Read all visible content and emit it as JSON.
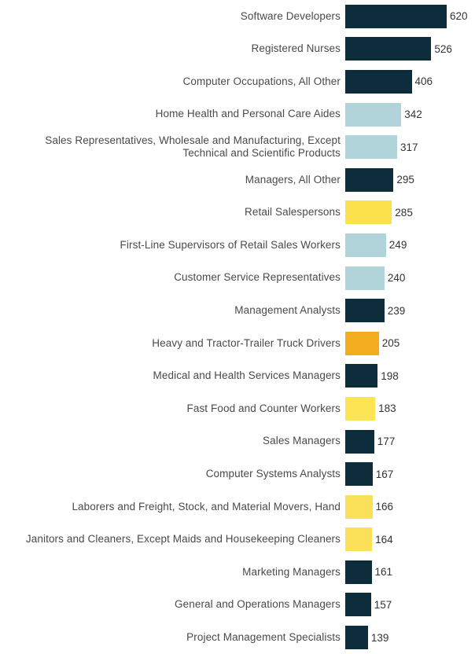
{
  "chart_data": {
    "type": "bar",
    "orientation": "horizontal",
    "title": "",
    "xlabel": "",
    "ylabel": "",
    "xlim": [
      0,
      620
    ],
    "grid": false,
    "axes_hidden": true,
    "value_labels_shown": true,
    "categories": [
      "Software Developers",
      "Registered Nurses",
      "Computer Occupations, All Other",
      "Home Health and Personal Care Aides",
      "Sales Representatives, Wholesale and Manufacturing, Except Technical and Scientific Products",
      "Managers, All Other",
      "Retail Salespersons",
      "First-Line Supervisors of Retail Sales Workers",
      "Customer Service Representatives",
      "Management Analysts",
      "Heavy and Tractor-Trailer Truck Drivers",
      "Medical and Health Services Managers",
      "Fast Food and Counter Workers",
      "Sales Managers",
      "Computer Systems Analysts",
      "Laborers and Freight, Stock, and Material Movers, Hand",
      "Janitors and Cleaners, Except Maids and Housekeeping Cleaners",
      "Marketing Managers",
      "General and Operations Managers",
      "Project Management Specialists"
    ],
    "values": [
      620,
      526,
      406,
      342,
      317,
      295,
      285,
      249,
      240,
      239,
      205,
      198,
      183,
      177,
      167,
      166,
      164,
      161,
      157,
      139
    ],
    "bar_colors": [
      "#0D2D3D",
      "#0D2D3D",
      "#0D2D3D",
      "#B0D4D9",
      "#B0D4D9",
      "#0D2D3D",
      "#FBE14C",
      "#B0D4D9",
      "#B0D4D9",
      "#0D2D3D",
      "#F1AD1D",
      "#0D2D3D",
      "#FDE455",
      "#0D2D3D",
      "#0D2D3D",
      "#FBE159",
      "#FBE159",
      "#0D2D3D",
      "#0D2D3D",
      "#0D2D3D"
    ],
    "palette": {
      "dark_navy": "#0D2D3D",
      "light_blue": "#B0D4D9",
      "yellow": "#FBE14C",
      "light_yellow": "#FDE455",
      "orange": "#F1AD1D"
    },
    "label_color": "#4a4a4a",
    "value_color": "#333333"
  }
}
